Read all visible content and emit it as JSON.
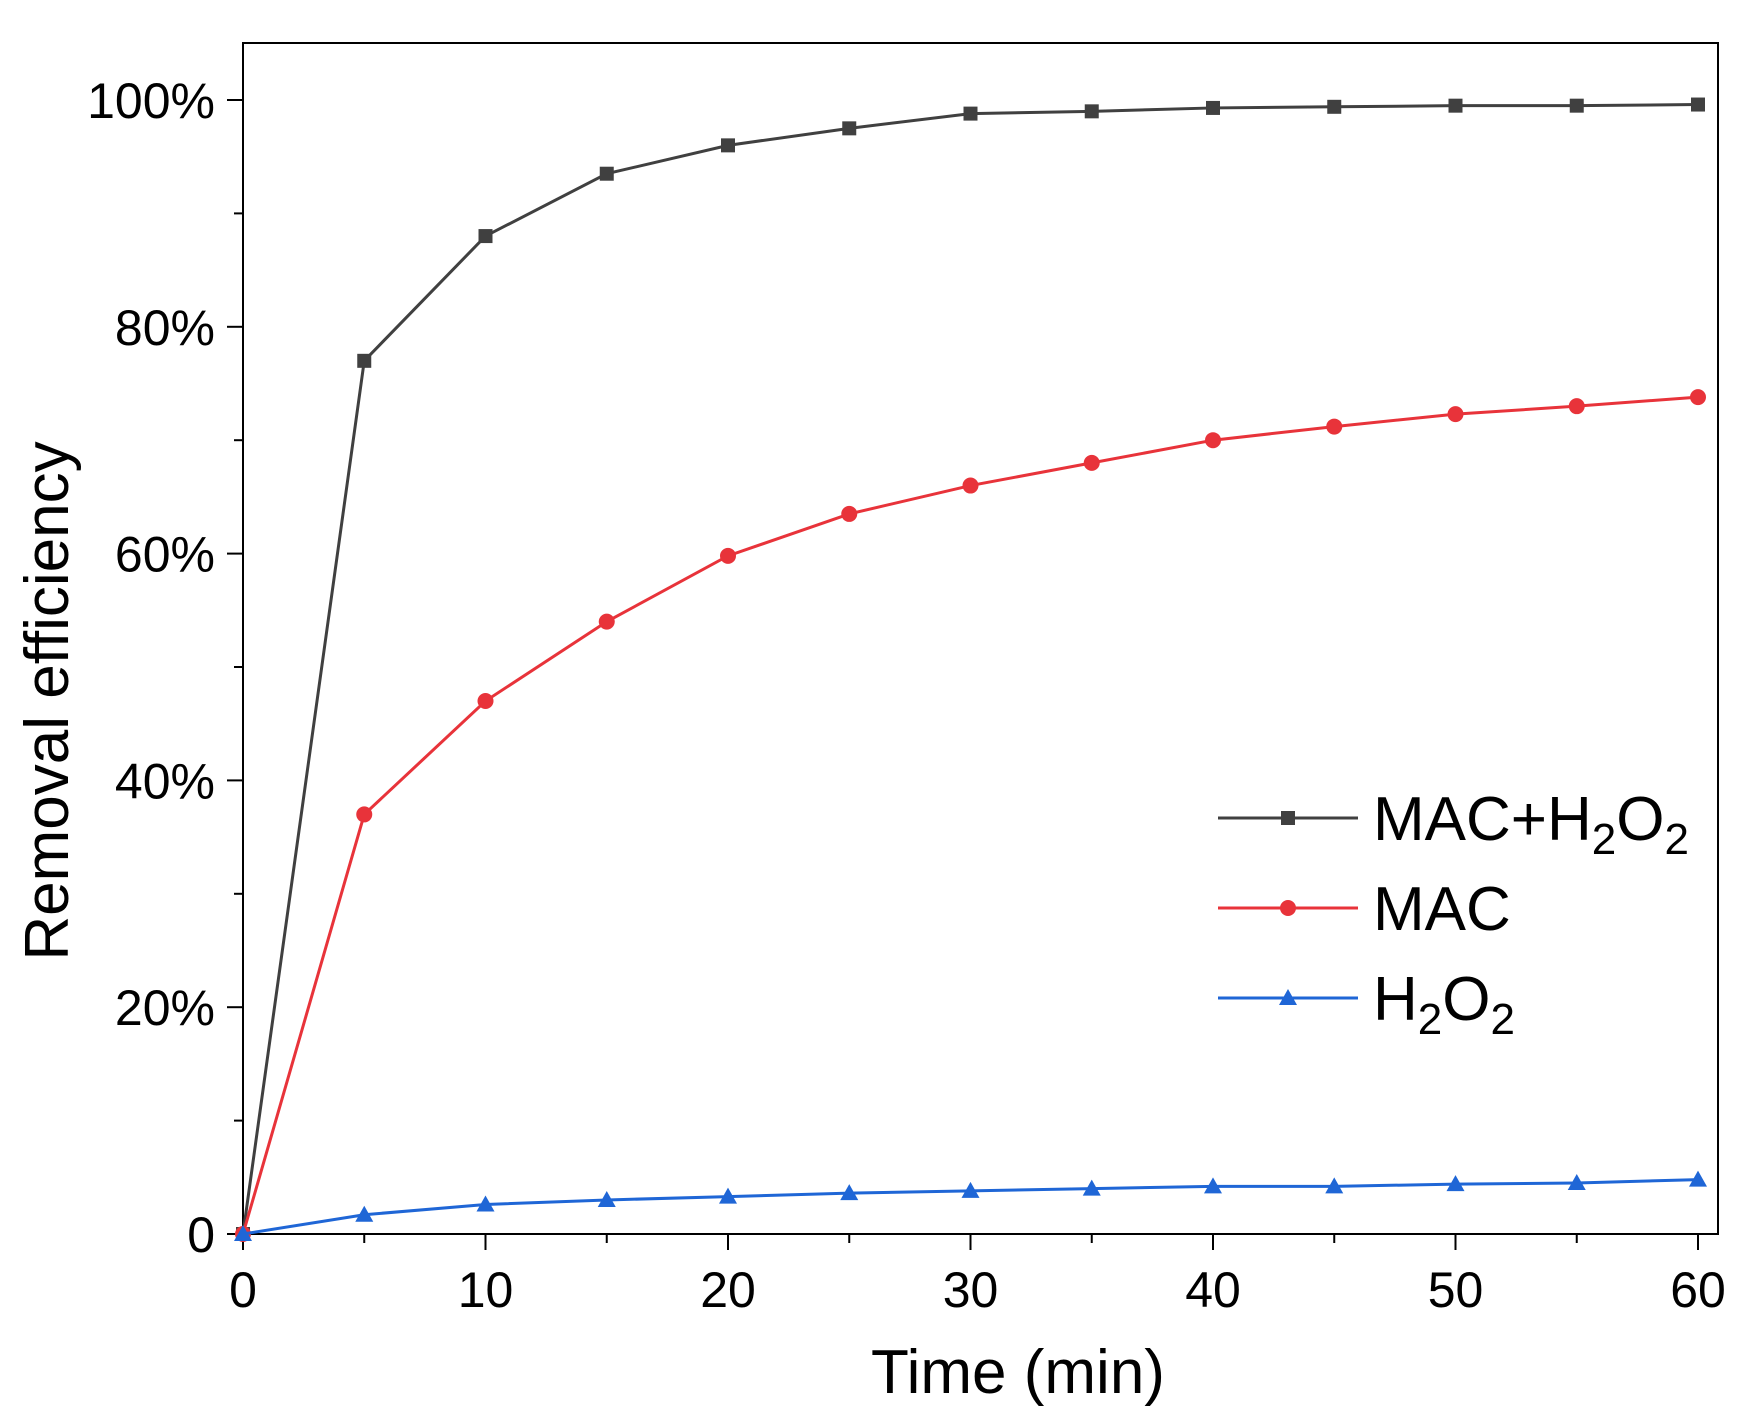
{
  "chart_data": {
    "type": "line",
    "xlabel": "Time (min)",
    "ylabel": "Removal efficiency",
    "xlim": [
      0,
      60
    ],
    "ylim": [
      0,
      1.0
    ],
    "x_ticks": [
      "0",
      "10",
      "20",
      "30",
      "40",
      "50",
      "60"
    ],
    "y_ticks": [
      "0",
      "20%",
      "40%",
      "60%",
      "80%",
      "100%"
    ],
    "x": [
      0,
      5,
      10,
      15,
      20,
      25,
      30,
      35,
      40,
      45,
      50,
      55,
      60
    ],
    "grid": false,
    "legend_position": "right-middle",
    "series": [
      {
        "name": "MAC+H2O2",
        "legend_parts": [
          "MAC+H",
          "2",
          "O",
          "2"
        ],
        "marker": "square",
        "color": "#404040",
        "values": [
          0.0,
          0.77,
          0.88,
          0.935,
          0.96,
          0.975,
          0.988,
          0.99,
          0.993,
          0.994,
          0.995,
          0.995,
          0.996
        ]
      },
      {
        "name": "MAC",
        "legend_parts": [
          "MAC"
        ],
        "marker": "circle",
        "color": "#e8333a",
        "values": [
          0.0,
          0.37,
          0.47,
          0.54,
          0.598,
          0.635,
          0.66,
          0.68,
          0.7,
          0.712,
          0.723,
          0.73,
          0.738
        ]
      },
      {
        "name": "H2O2",
        "legend_parts": [
          "H",
          "2",
          "O",
          "2"
        ],
        "marker": "triangle",
        "color": "#1f66d6",
        "values": [
          0.0,
          0.017,
          0.026,
          0.03,
          0.033,
          0.036,
          0.038,
          0.04,
          0.042,
          0.042,
          0.044,
          0.045,
          0.048
        ]
      }
    ]
  }
}
